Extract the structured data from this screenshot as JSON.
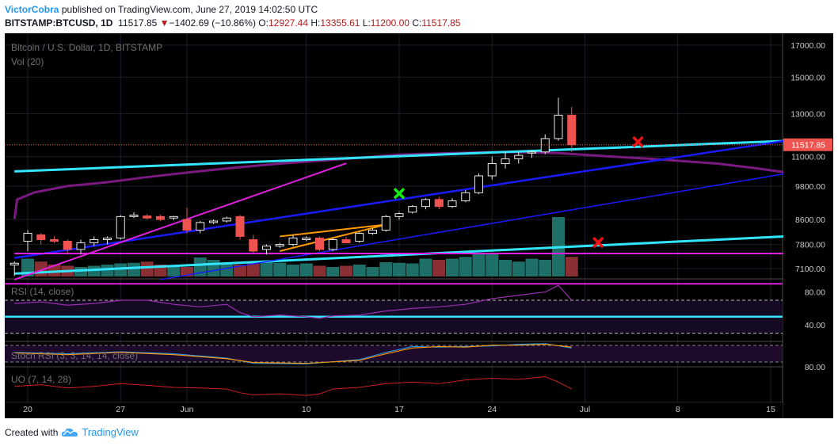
{
  "header": {
    "author": "VictorCobra",
    "published_text": "published on TradingView.com, June 27, 2019 14:02:50 UTC",
    "symbol": "BITSTAMP:BTCUSD, 1D",
    "last": "11517.85",
    "change": "−1402.69 (−10.86%)",
    "o_label": "O:",
    "o_value": "12927.44",
    "h_label": "H:",
    "h_value": "13355.61",
    "l_label": "L:",
    "l_value": "11200.00",
    "c_label": "C:",
    "c_value": "11517.85"
  },
  "colors": {
    "up": "#26a69a",
    "down": "#ef5350",
    "vol_up": "#1e6f67",
    "vol_down": "#8a2f33",
    "cyan": "#33e6ff",
    "blue": "#1a1aff",
    "magenta": "#e020e0",
    "orange": "#ff9900",
    "ma": "#7a1a80",
    "rsi": "#9b30b0",
    "uo": "#d02020",
    "price_label": "#ef5350"
  },
  "chart_data": [
    {
      "type": "candlestick",
      "title": "Bitcoin / U.S. Dollar, 1D, BITSTAMP",
      "volume_label": "Vol (20)",
      "ylim": [
        6700,
        17600
      ],
      "yticks": [
        7100,
        7800,
        8600,
        9800,
        11000,
        13000,
        15000,
        17000
      ],
      "ytick_labels": [
        "7100.00",
        "7800.00",
        "8600.00",
        "9800.00",
        "11000.00",
        "13000.00",
        "15000.00",
        "17000.00"
      ],
      "last_price_label": "11517.85",
      "last_price": 11517.85,
      "x_tick_labels": [
        "20",
        "27",
        "Jun",
        "10",
        "17",
        "24",
        "Jul",
        "8",
        "15"
      ],
      "x_tick_days": [
        0,
        7,
        12,
        21,
        28,
        35,
        42,
        49,
        56
      ],
      "candles": [
        {
          "day": -1,
          "o": 7200,
          "h": 7300,
          "l": 6900,
          "c": 7250
        },
        {
          "day": 0,
          "o": 7900,
          "h": 8250,
          "l": 7600,
          "c": 8150
        },
        {
          "day": 1,
          "o": 8100,
          "h": 8150,
          "l": 7800,
          "c": 7950
        },
        {
          "day": 2,
          "o": 7950,
          "h": 8050,
          "l": 7850,
          "c": 7900
        },
        {
          "day": 3,
          "o": 7900,
          "h": 7950,
          "l": 7500,
          "c": 7650
        },
        {
          "day": 4,
          "o": 7650,
          "h": 7950,
          "l": 7500,
          "c": 7850
        },
        {
          "day": 5,
          "o": 7850,
          "h": 8050,
          "l": 7750,
          "c": 7950
        },
        {
          "day": 6,
          "o": 7950,
          "h": 8050,
          "l": 7800,
          "c": 8000
        },
        {
          "day": 7,
          "o": 8000,
          "h": 8750,
          "l": 7950,
          "c": 8700
        },
        {
          "day": 8,
          "o": 8700,
          "h": 8850,
          "l": 8650,
          "c": 8750
        },
        {
          "day": 9,
          "o": 8720,
          "h": 8780,
          "l": 8600,
          "c": 8650
        },
        {
          "day": 10,
          "o": 8700,
          "h": 8760,
          "l": 8550,
          "c": 8600
        },
        {
          "day": 11,
          "o": 8650,
          "h": 8720,
          "l": 8580,
          "c": 8700
        },
        {
          "day": 12,
          "o": 8600,
          "h": 9000,
          "l": 8150,
          "c": 8250
        },
        {
          "day": 13,
          "o": 8250,
          "h": 8550,
          "l": 8150,
          "c": 8500
        },
        {
          "day": 14,
          "o": 8500,
          "h": 8600,
          "l": 8450,
          "c": 8550
        },
        {
          "day": 15,
          "o": 8550,
          "h": 8700,
          "l": 8500,
          "c": 8650
        },
        {
          "day": 16,
          "o": 8700,
          "h": 8750,
          "l": 7950,
          "c": 8050
        },
        {
          "day": 17,
          "o": 7950,
          "h": 8100,
          "l": 7550,
          "c": 7600
        },
        {
          "day": 18,
          "o": 7650,
          "h": 7800,
          "l": 7500,
          "c": 7750
        },
        {
          "day": 19,
          "o": 7750,
          "h": 7850,
          "l": 7700,
          "c": 7800
        },
        {
          "day": 20,
          "o": 7800,
          "h": 8100,
          "l": 7750,
          "c": 8000
        },
        {
          "day": 21,
          "o": 7950,
          "h": 8050,
          "l": 7900,
          "c": 8000
        },
        {
          "day": 22,
          "o": 8000,
          "h": 8050,
          "l": 7600,
          "c": 7650
        },
        {
          "day": 23,
          "o": 7650,
          "h": 8000,
          "l": 7600,
          "c": 7950
        },
        {
          "day": 24,
          "o": 7950,
          "h": 8050,
          "l": 7850,
          "c": 7850
        },
        {
          "day": 25,
          "o": 7900,
          "h": 8200,
          "l": 7850,
          "c": 8150
        },
        {
          "day": 26,
          "o": 8150,
          "h": 8300,
          "l": 8100,
          "c": 8250
        },
        {
          "day": 27,
          "o": 8250,
          "h": 8750,
          "l": 8200,
          "c": 8700
        },
        {
          "day": 28,
          "o": 8700,
          "h": 8850,
          "l": 8600,
          "c": 8800
        },
        {
          "day": 29,
          "o": 8850,
          "h": 9100,
          "l": 8800,
          "c": 9050
        },
        {
          "day": 30,
          "o": 9050,
          "h": 9350,
          "l": 8950,
          "c": 9300
        },
        {
          "day": 31,
          "o": 9300,
          "h": 9400,
          "l": 8950,
          "c": 9050
        },
        {
          "day": 32,
          "o": 9050,
          "h": 9350,
          "l": 9000,
          "c": 9250
        },
        {
          "day": 33,
          "o": 9250,
          "h": 9650,
          "l": 9200,
          "c": 9550
        },
        {
          "day": 34,
          "o": 9550,
          "h": 10300,
          "l": 9500,
          "c": 10200
        },
        {
          "day": 35,
          "o": 10200,
          "h": 11000,
          "l": 10050,
          "c": 10700
        },
        {
          "day": 36,
          "o": 10700,
          "h": 11200,
          "l": 10500,
          "c": 10900
        },
        {
          "day": 37,
          "o": 10900,
          "h": 11200,
          "l": 10700,
          "c": 11050
        },
        {
          "day": 38,
          "o": 11150,
          "h": 11250,
          "l": 10950,
          "c": 11200
        },
        {
          "day": 39,
          "o": 11200,
          "h": 12000,
          "l": 11100,
          "c": 11800
        },
        {
          "day": 40,
          "o": 11800,
          "h": 13850,
          "l": 11700,
          "c": 12930
        },
        {
          "day": 41,
          "o": 12927.44,
          "h": 13355.61,
          "l": 11200,
          "c": 11517.85
        }
      ],
      "volume_max": 100,
      "volume": [
        30,
        25,
        20,
        18,
        16,
        18,
        20,
        22,
        23,
        25,
        20,
        18,
        16,
        32,
        28,
        22,
        20,
        24,
        25,
        23,
        20,
        22,
        18,
        16,
        18,
        20,
        16,
        24,
        23,
        22,
        30,
        28,
        30,
        33,
        38,
        40,
        28,
        25,
        30,
        28,
        100,
        33
      ],
      "ma": [
        [
          -1,
          8620
        ],
        [
          -0.8,
          9300
        ],
        [
          0.5,
          9560
        ],
        [
          3,
          9800
        ],
        [
          6,
          9950
        ],
        [
          9,
          10150
        ],
        [
          12,
          10330
        ],
        [
          15,
          10500
        ],
        [
          19,
          10700
        ],
        [
          24,
          10900
        ],
        [
          28,
          11080
        ],
        [
          32,
          11150
        ],
        [
          36,
          11200
        ],
        [
          40,
          11150
        ],
        [
          44,
          11000
        ],
        [
          47,
          10900
        ],
        [
          52,
          10700
        ],
        [
          55,
          10500
        ],
        [
          57,
          10350
        ]
      ],
      "trend_lines": [
        {
          "color": "cyan",
          "width": 3,
          "points": [
            [
              -1,
              10380
            ],
            [
              57,
              11690
            ]
          ]
        },
        {
          "color": "cyan",
          "width": 3,
          "points": [
            [
              -1,
              6960
            ],
            [
              57,
              8050
            ]
          ]
        },
        {
          "color": "blue",
          "width": 2.5,
          "points": [
            [
              -1,
              7400
            ],
            [
              57,
              11690
            ]
          ]
        },
        {
          "color": "blue",
          "width": 1.5,
          "points": [
            [
              10,
              6800
            ],
            [
              57,
              10280
            ]
          ]
        },
        {
          "color": "magenta",
          "width": 2,
          "points": [
            [
              -1,
              6800
            ],
            [
              24,
              10710
            ]
          ]
        },
        {
          "color": "magenta",
          "width": 2,
          "points": [
            [
              -1,
              7530
            ],
            [
              57,
              7530
            ]
          ]
        },
        {
          "color": "orange",
          "width": 2,
          "points": [
            [
              19,
              7600
            ],
            [
              27,
              8430
            ]
          ]
        },
        {
          "color": "orange",
          "width": 2,
          "points": [
            [
              19,
              8050
            ],
            [
              27,
              8430
            ]
          ]
        }
      ],
      "markers": [
        {
          "shape": "cross",
          "color": "#11ee11",
          "day": 28,
          "price": 9520
        },
        {
          "shape": "cross",
          "color": "#ee1111",
          "day": 46,
          "price": 11650
        },
        {
          "shape": "cross",
          "color": "#ee1111",
          "day": 43,
          "price": 7860
        }
      ]
    },
    {
      "type": "line",
      "title": "RSI (14, close)",
      "ylim": [
        20,
        95
      ],
      "yticks": [
        40,
        80
      ],
      "ytick_labels": [
        "40.00",
        "80.00"
      ],
      "levels": {
        "upper": 70,
        "lower": 30,
        "top_band": 90,
        "cyan": 50
      },
      "series": [
        {
          "values": [
            [
              -1,
              66
            ],
            [
              1,
              68
            ],
            [
              3,
              64
            ],
            [
              5,
              66
            ],
            [
              7,
              70
            ],
            [
              9,
              70
            ],
            [
              11,
              65
            ],
            [
              13,
              62
            ],
            [
              15,
              65
            ],
            [
              16,
              55
            ],
            [
              17,
              50
            ],
            [
              19,
              52
            ],
            [
              21,
              50
            ],
            [
              22,
              48
            ],
            [
              23,
              51
            ],
            [
              25,
              52
            ],
            [
              27,
              57
            ],
            [
              29,
              60
            ],
            [
              31,
              62
            ],
            [
              33,
              65
            ],
            [
              35,
              72
            ],
            [
              37,
              76
            ],
            [
              39,
              80
            ],
            [
              40,
              88
            ],
            [
              41,
              70
            ]
          ]
        }
      ]
    },
    {
      "type": "line",
      "title": "Stoch RSI (3, 3, 14, 14, close)",
      "ylim": [
        10,
        95
      ],
      "yticks": [
        80
      ],
      "ytick_labels": [
        "80.00"
      ],
      "series": [
        {
          "color": "#2196f3",
          "values": [
            [
              -1,
              60
            ],
            [
              3,
              55
            ],
            [
              7,
              62
            ],
            [
              11,
              55
            ],
            [
              15,
              40
            ],
            [
              17,
              22
            ],
            [
              21,
              20
            ],
            [
              25,
              35
            ],
            [
              27,
              60
            ],
            [
              29,
              80
            ],
            [
              31,
              78
            ],
            [
              33,
              80
            ],
            [
              35,
              82
            ],
            [
              37,
              88
            ],
            [
              39,
              90
            ],
            [
              41,
              75
            ]
          ]
        },
        {
          "color": "#ff9900",
          "values": [
            [
              -1,
              58
            ],
            [
              3,
              52
            ],
            [
              7,
              60
            ],
            [
              11,
              52
            ],
            [
              15,
              38
            ],
            [
              17,
              25
            ],
            [
              21,
              22
            ],
            [
              25,
              32
            ],
            [
              27,
              55
            ],
            [
              29,
              75
            ],
            [
              31,
              80
            ],
            [
              33,
              78
            ],
            [
              35,
              85
            ],
            [
              37,
              85
            ],
            [
              39,
              88
            ],
            [
              41,
              78
            ]
          ]
        }
      ]
    },
    {
      "type": "line",
      "title": "UO (7, 14, 28)",
      "ylim": [
        20,
        85
      ],
      "series": [
        {
          "values": [
            [
              -1,
              50
            ],
            [
              1,
              53
            ],
            [
              3,
              47
            ],
            [
              5,
              50
            ],
            [
              7,
              55
            ],
            [
              9,
              52
            ],
            [
              11,
              48
            ],
            [
              13,
              47
            ],
            [
              15,
              45
            ],
            [
              16,
              38
            ],
            [
              17,
              34
            ],
            [
              19,
              36
            ],
            [
              21,
              33
            ],
            [
              22,
              36
            ],
            [
              23,
              45
            ],
            [
              25,
              48
            ],
            [
              27,
              55
            ],
            [
              29,
              58
            ],
            [
              31,
              55
            ],
            [
              33,
              62
            ],
            [
              35,
              65
            ],
            [
              37,
              63
            ],
            [
              39,
              68
            ],
            [
              40,
              58
            ],
            [
              41,
              45
            ]
          ]
        }
      ]
    }
  ],
  "footer": {
    "created_with": "Created with",
    "brand": "TradingView",
    "logo_icon": "tradingview-cloud-icon"
  }
}
